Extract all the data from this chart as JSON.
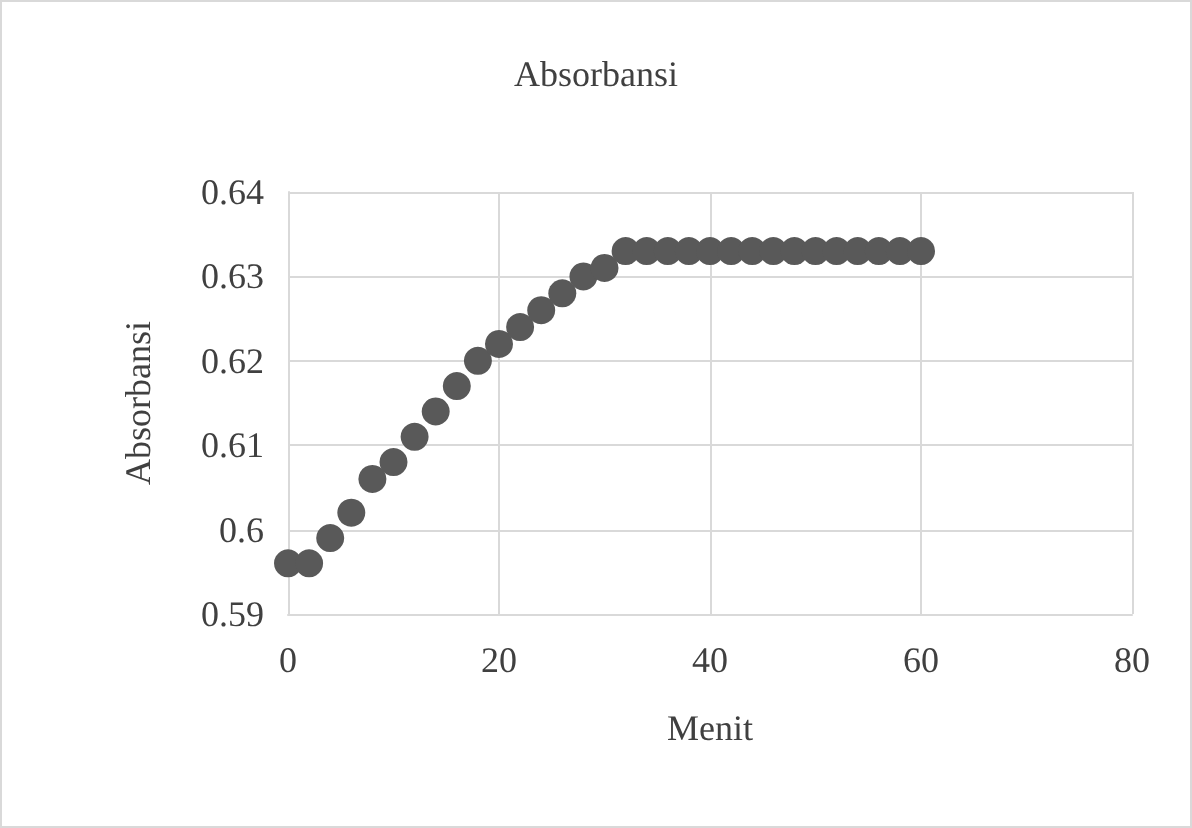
{
  "chart_data": {
    "type": "scatter",
    "title": "Absorbansi",
    "xlabel": "Menit",
    "ylabel": "Absorbansi",
    "x": [
      0,
      2,
      4,
      6,
      8,
      10,
      12,
      14,
      16,
      18,
      20,
      22,
      24,
      26,
      28,
      30,
      32,
      34,
      36,
      38,
      40,
      42,
      44,
      46,
      48,
      50,
      52,
      54,
      56,
      58,
      60
    ],
    "series": [
      {
        "color": "#595959",
        "values": [
          0.596,
          0.596,
          0.599,
          0.602,
          0.606,
          0.608,
          0.611,
          0.614,
          0.617,
          0.62,
          0.622,
          0.624,
          0.626,
          0.628,
          0.63,
          0.631,
          0.633,
          0.633,
          0.633,
          0.633,
          0.633,
          0.633,
          0.633,
          0.633,
          0.633,
          0.633,
          0.633,
          0.633,
          0.633,
          0.633,
          0.633
        ]
      }
    ],
    "xlim": [
      0,
      80
    ],
    "xticks": [
      0,
      20,
      40,
      60,
      80
    ],
    "ylim": [
      0.59,
      0.64
    ],
    "yticks": [
      0.59,
      0.6,
      0.61,
      0.62,
      0.63,
      0.64
    ],
    "grid": true,
    "marker": "circle"
  }
}
